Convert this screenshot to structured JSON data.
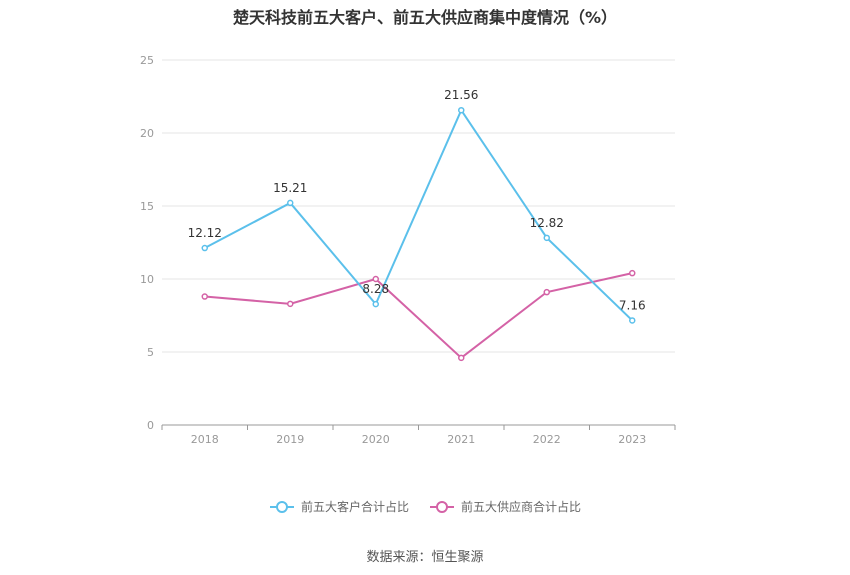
{
  "chart_data": {
    "type": "line",
    "title": "楚天科技前五大客户、前五大供应商集中度情况（%）",
    "categories": [
      "2018",
      "2019",
      "2020",
      "2021",
      "2022",
      "2023"
    ],
    "series": [
      {
        "name": "前五大客户合计占比",
        "color": "#5bc0eb",
        "values": [
          12.12,
          15.21,
          8.28,
          21.56,
          12.82,
          7.16
        ],
        "show_labels": true
      },
      {
        "name": "前五大供应商合计占比",
        "color": "#d462a6",
        "values": [
          8.8,
          8.3,
          10.0,
          4.6,
          9.1,
          10.4
        ],
        "show_labels": false
      }
    ],
    "ylim": [
      0,
      25
    ],
    "yticks": [
      0,
      5,
      10,
      15,
      20,
      25
    ],
    "grid": true,
    "legend_position": "bottom"
  },
  "source_text": "数据来源：恒生聚源"
}
